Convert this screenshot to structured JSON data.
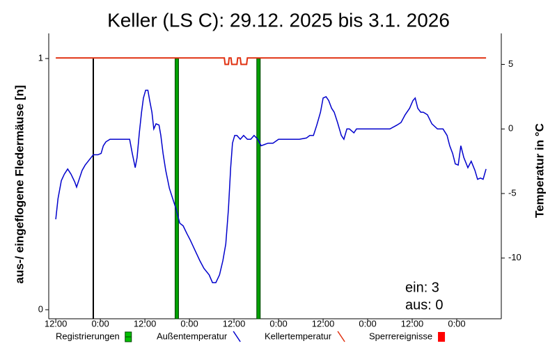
{
  "chart_data": {
    "type": "line",
    "title": "Keller (LS C): 29.12. 2025 bis 3.1. 2026",
    "ylabel": "aus-/ eingeflogene Fledermäuse [n]",
    "y2label": "Temperatur in °C",
    "xlim": [
      -1.9,
      120
    ],
    "ylim": [
      -0.036,
      1.1
    ],
    "y2lim": [
      -14.7,
      7.4
    ],
    "xticks": [
      {
        "value": 0,
        "label": "12:00"
      },
      {
        "value": 12,
        "label": "0:00"
      },
      {
        "value": 24,
        "label": "12:00"
      },
      {
        "value": 36,
        "label": "0:00"
      },
      {
        "value": 48,
        "label": "12:00"
      },
      {
        "value": 60,
        "label": "0:00"
      },
      {
        "value": 72,
        "label": "12:00"
      },
      {
        "value": 84,
        "label": "0:00"
      },
      {
        "value": 96,
        "label": "12:00"
      },
      {
        "value": 108,
        "label": "0:00"
      }
    ],
    "yticks": [
      0,
      1
    ],
    "y2ticks": [
      -10,
      -5,
      0,
      5
    ],
    "annotations": [
      "ein: 3",
      "aus: 0"
    ],
    "series": [
      {
        "name": "Registrierungen",
        "type": "event",
        "color": "#00c000",
        "colors": [
          "#000000",
          "#00a000",
          "#00a000"
        ],
        "x": [
          10.1,
          32.6,
          54.6
        ],
        "values": [
          1,
          1,
          1
        ]
      },
      {
        "name": "Außentemperatur",
        "color": "#0000cc",
        "axis": "y2",
        "x": [
          0,
          0.6,
          1.5,
          2.3,
          3.2,
          4.1,
          5.1,
          5.6,
          6.4,
          7.1,
          7.9,
          9.0,
          10.1,
          11.3,
          12.2,
          12.8,
          13.5,
          14.6,
          15.9,
          17.3,
          18.8,
          19.9,
          20.6,
          21.4,
          21.9,
          22.5,
          23.1,
          23.6,
          24.2,
          24.8,
          25.3,
          25.9,
          26.4,
          27.0,
          27.8,
          28.3,
          28.9,
          29.6,
          30.6,
          31.5,
          32.4,
          33.4,
          34.3,
          35.3,
          36.2,
          37.5,
          38.8,
          39.9,
          41.3,
          42.2,
          43.1,
          44.1,
          45.0,
          45.8,
          46.5,
          47.1,
          47.6,
          48.2,
          48.8,
          49.7,
          50.6,
          51.6,
          52.5,
          53.4,
          54.4,
          55.3,
          56.3,
          57.2,
          58.5,
          60.0,
          61.9,
          63.8,
          65.6,
          67.5,
          68.4,
          69.4,
          70.3,
          71.3,
          72.0,
          72.8,
          73.5,
          74.3,
          75.0,
          75.9,
          76.9,
          77.6,
          78.4,
          79.1,
          80.3,
          81.0,
          82.1,
          83.4,
          85.3,
          88.1,
          90.0,
          91.9,
          93.0,
          94.1,
          95.3,
          96.2,
          96.8,
          97.5,
          98.3,
          99.0,
          100.1,
          101.3,
          102.8,
          104.3,
          105.4,
          106.1,
          106.9,
          107.6,
          108.4,
          109.1,
          109.9,
          111.0,
          111.9,
          112.9,
          113.6,
          114.4,
          115.1,
          115.9
        ],
        "values": [
          -7.0,
          -5.4,
          -4.0,
          -3.5,
          -3.1,
          -3.5,
          -4.1,
          -4.5,
          -3.8,
          -3.2,
          -2.8,
          -2.4,
          -2.0,
          -2.0,
          -1.9,
          -1.3,
          -1.0,
          -0.8,
          -0.8,
          -0.8,
          -0.8,
          -0.8,
          -1.9,
          -3.0,
          -2.2,
          -0.3,
          1.3,
          2.4,
          3.0,
          3.0,
          2.2,
          1.3,
          0.0,
          0.4,
          0.3,
          -0.5,
          -1.9,
          -3.2,
          -4.6,
          -5.4,
          -6.2,
          -7.3,
          -7.5,
          -8.1,
          -8.6,
          -9.4,
          -10.2,
          -10.8,
          -11.3,
          -11.9,
          -11.9,
          -11.3,
          -10.2,
          -8.9,
          -6.2,
          -3.0,
          -1.1,
          -0.5,
          -0.5,
          -0.8,
          -0.5,
          -0.8,
          -0.8,
          -0.5,
          -0.8,
          -1.3,
          -1.2,
          -1.1,
          -1.1,
          -0.8,
          -0.8,
          -0.8,
          -0.8,
          -0.7,
          -0.5,
          -0.5,
          0.3,
          1.3,
          2.4,
          2.5,
          2.2,
          1.6,
          1.3,
          0.5,
          -0.5,
          -0.8,
          0.0,
          0.0,
          -0.3,
          0.0,
          0.0,
          0.0,
          0.0,
          0.0,
          0.0,
          0.3,
          0.5,
          1.1,
          1.6,
          2.2,
          2.4,
          1.6,
          1.3,
          1.3,
          1.1,
          0.4,
          0.0,
          0.0,
          -0.5,
          -1.3,
          -1.9,
          -2.7,
          -2.8,
          -1.3,
          -2.2,
          -3.0,
          -2.5,
          -3.2,
          -3.9,
          -3.8,
          -3.9,
          -3.1
        ]
      },
      {
        "name": "Kellertemperatur",
        "color": "#e03010",
        "axis": "y2",
        "x": [
          0,
          45.4,
          45.6,
          46.5,
          46.7,
          47.2,
          47.4,
          48.8,
          49.0,
          49.7,
          49.9,
          51.4,
          51.6,
          115.9
        ],
        "values": [
          5.5,
          5.5,
          5.0,
          5.0,
          5.5,
          5.5,
          5.0,
          5.0,
          5.5,
          5.5,
          5.0,
          5.0,
          5.5,
          5.5
        ]
      },
      {
        "name": "Sperrereignisse",
        "type": "event",
        "color": "#ff0000",
        "x": [],
        "values": []
      }
    ]
  }
}
